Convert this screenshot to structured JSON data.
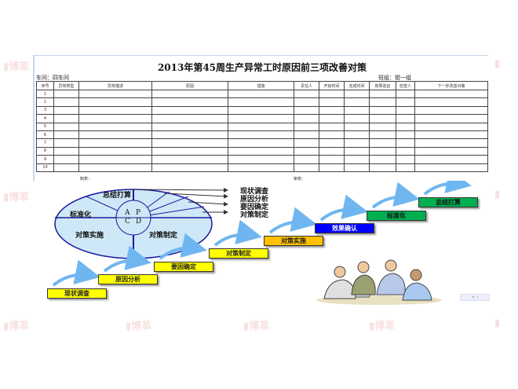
{
  "sheet": {
    "title": "2013年第45周生产异常工时原因前三项改善对策",
    "workshop": "车间：四车间",
    "team": "班组：钳一组",
    "columns": [
      "序号",
      "异常类型",
      "异常描述",
      "原因",
      "措施",
      "责任人",
      "开始时间",
      "完成时间",
      "效果验证",
      "检查人",
      "下一步改善对策"
    ],
    "rows": [
      "1",
      "2",
      "3",
      "4",
      "5",
      "6",
      "7",
      "8",
      "9",
      "10"
    ],
    "prepared_by": "制表：",
    "reviewed_by": "审核："
  },
  "pdca": {
    "segments": [
      "总结打算",
      "标准化",
      "对策实施",
      "对策制定"
    ],
    "center": [
      "A",
      "P",
      "C",
      "D"
    ],
    "plan_steps": [
      "现状调查",
      "原因分析",
      "要因确定",
      "对策制定"
    ]
  },
  "steps": [
    {
      "label": "现状调查",
      "color": "#ffff00"
    },
    {
      "label": "原因分析",
      "color": "#ffff00"
    },
    {
      "label": "要因确定",
      "color": "#ffff00"
    },
    {
      "label": "对策制定",
      "color": "#ffff00"
    },
    {
      "label": "对策实施",
      "color": "#ffc000"
    },
    {
      "label": "效果确认",
      "color": "#0000ff"
    },
    {
      "label": "标准化",
      "color": "#00b050"
    },
    {
      "label": "总结打算",
      "color": "#00b050"
    }
  ],
  "watermark": "博革",
  "colors": {
    "pie_fill": "#cfe8f7",
    "pie_line": "#1a1aa0",
    "arrow": "#6fb6f0"
  }
}
